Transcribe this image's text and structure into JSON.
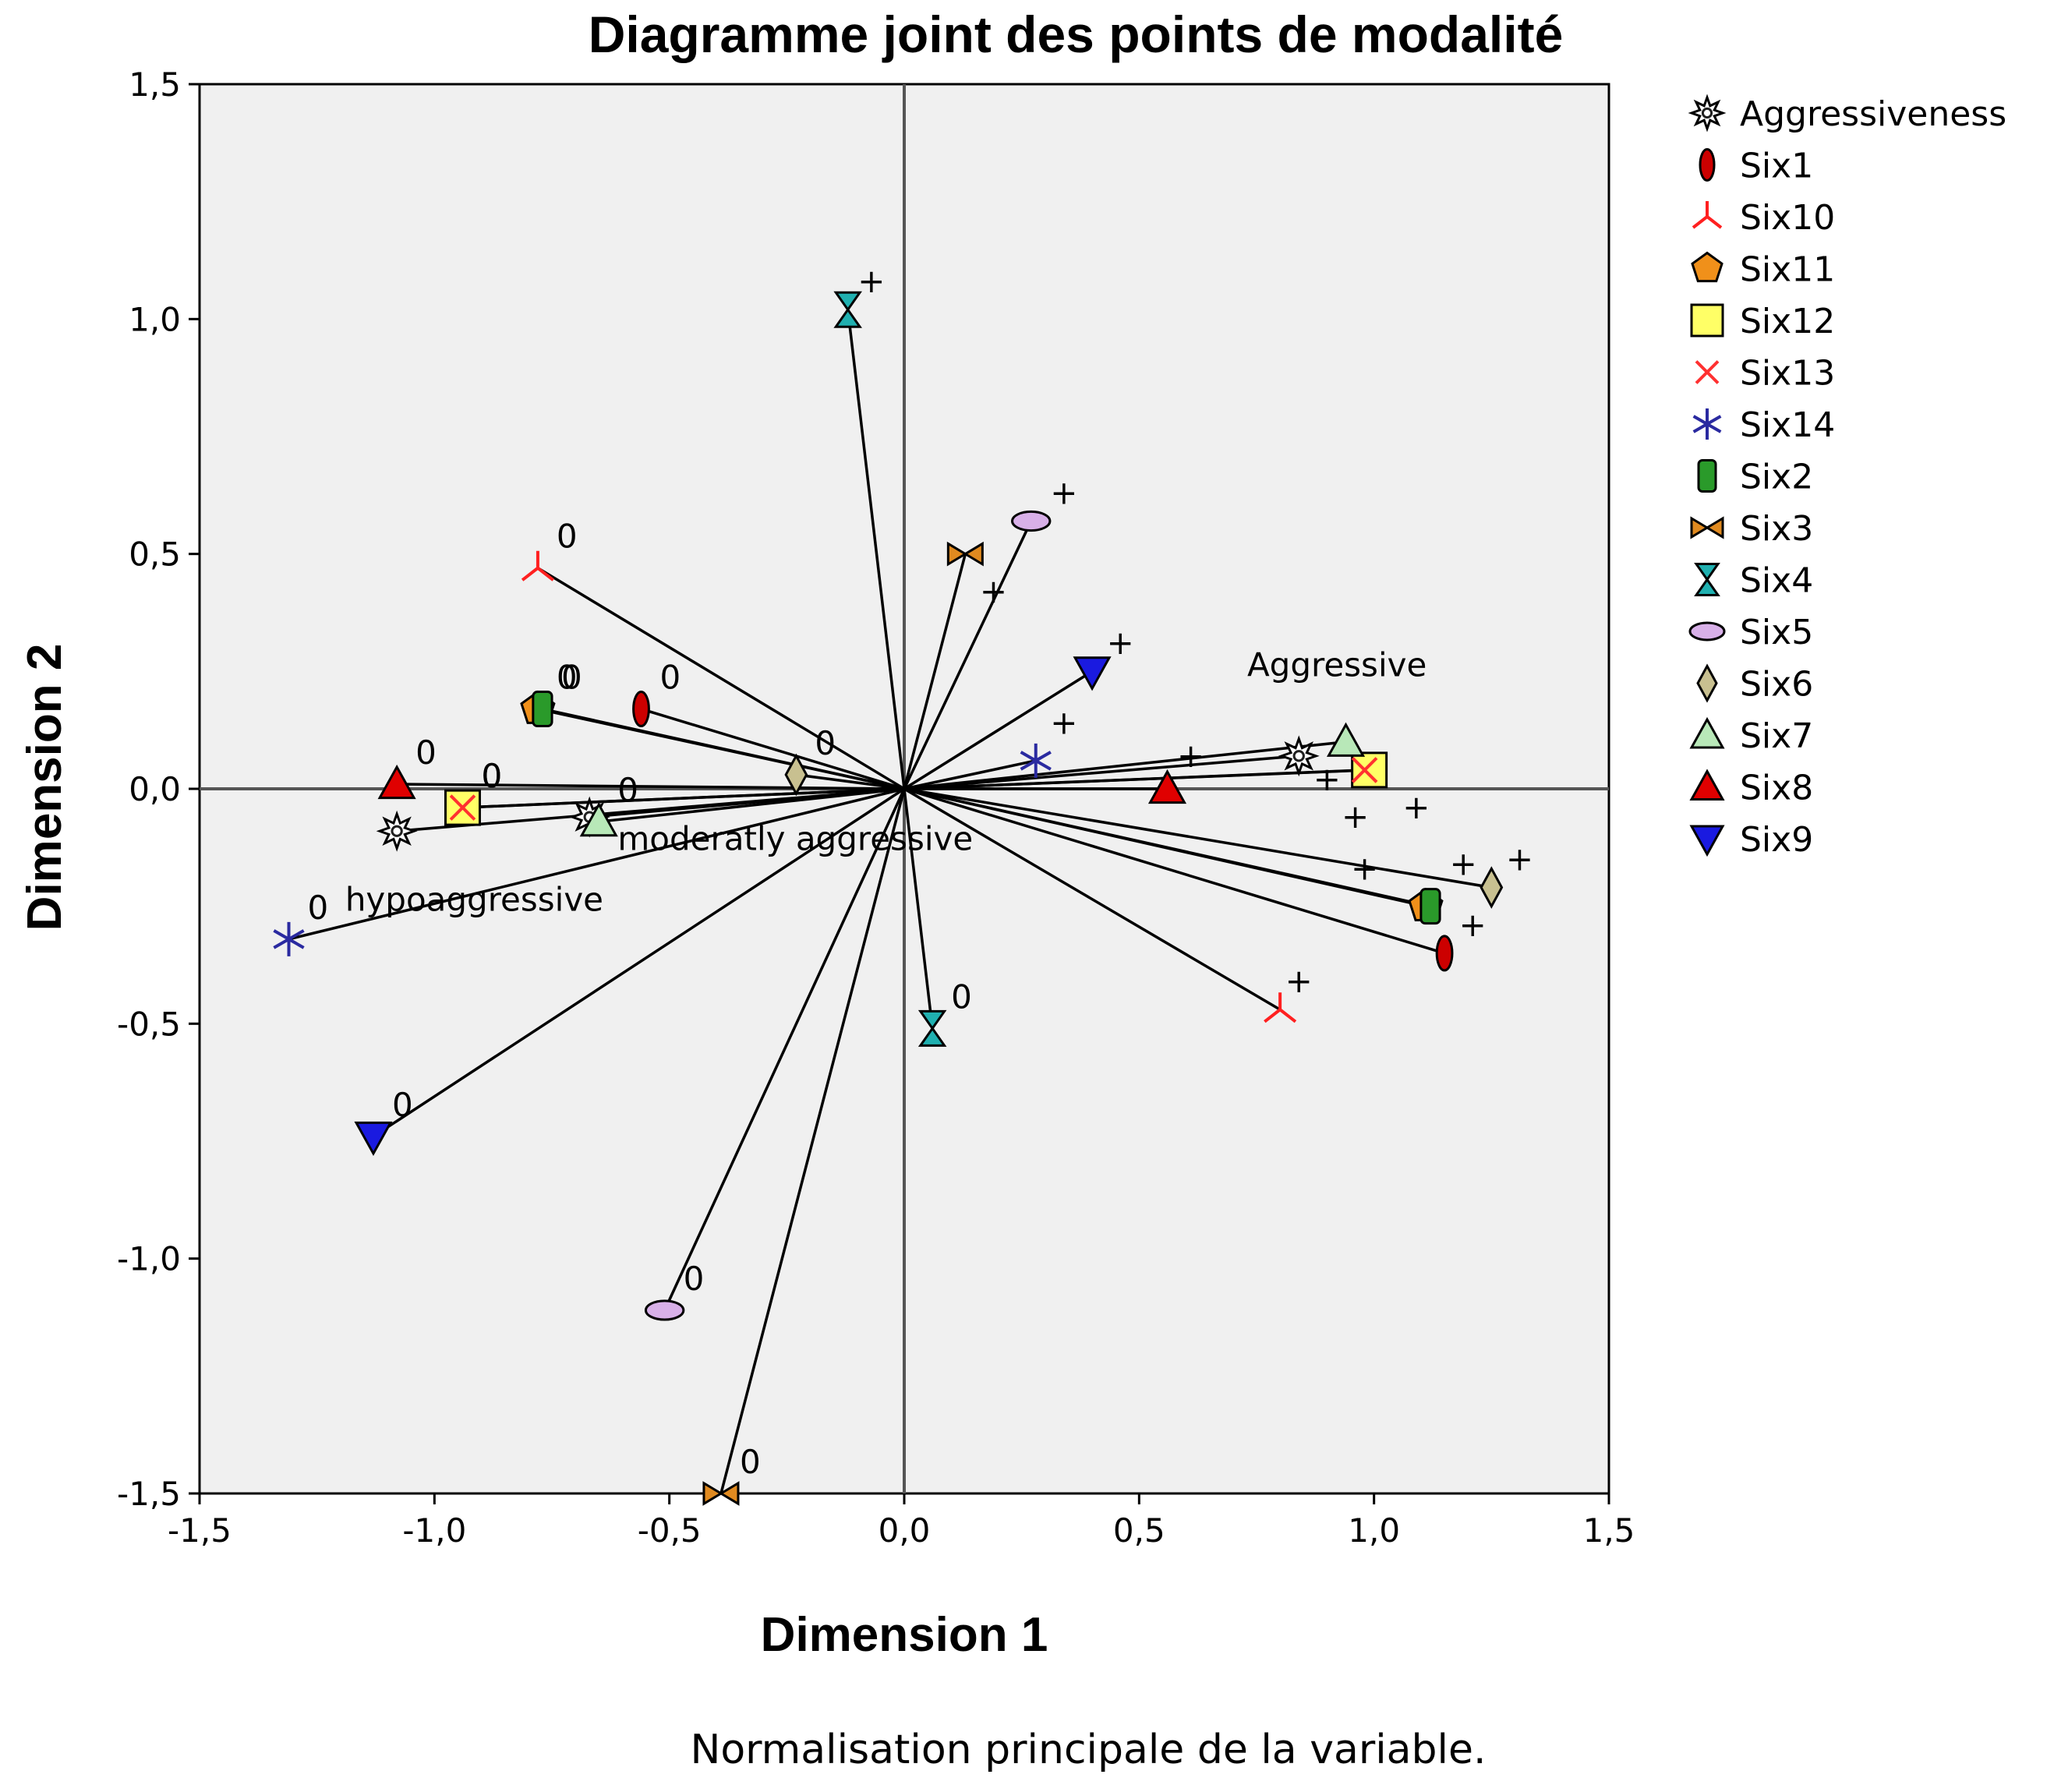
{
  "chart_data": {
    "type": "scatter",
    "title": "Diagramme joint des points de modalité",
    "xlabel": "Dimension 1",
    "ylabel": "Dimension 2",
    "xlim": [
      -1.5,
      1.5
    ],
    "ylim": [
      -1.5,
      1.5
    ],
    "xticks": [
      "-1,5",
      "-1,0",
      "-0,5",
      "0,0",
      "0,5",
      "1,0",
      "1,5"
    ],
    "yticks": [
      "1,5",
      "1,0",
      "0,5",
      "0,0",
      "-0,5",
      "-1,0",
      "-1,5"
    ],
    "footnote": "Normalisation principale de la variable.",
    "legend_position": "right",
    "series": [
      {
        "name": "Aggressiveness",
        "marker": "star",
        "color": "#202020",
        "points": [
          [
            0.84,
            0.07
          ],
          [
            -1.08,
            -0.09
          ],
          [
            -0.67,
            -0.06
          ]
        ]
      },
      {
        "name": "Six1",
        "marker": "ellipse-v",
        "color": "#cc0000",
        "points": [
          [
            -0.56,
            0.17,
            "0"
          ],
          [
            1.15,
            -0.35,
            ""
          ]
        ],
        "plus": [
          [
            1.21,
            -0.29
          ]
        ]
      },
      {
        "name": "Six10",
        "marker": "tripod",
        "color": "#ff2020",
        "points": [
          [
            -0.78,
            0.47,
            "0"
          ],
          [
            0.8,
            -0.47,
            ""
          ]
        ],
        "plus": [
          [
            0.84,
            -0.41
          ]
        ]
      },
      {
        "name": "Six11",
        "marker": "pentagon",
        "color": "#f0901a",
        "points": [
          [
            -0.78,
            0.17,
            "0"
          ],
          [
            1.11,
            -0.25,
            ""
          ]
        ],
        "plus": [
          [
            1.19,
            -0.16
          ]
        ]
      },
      {
        "name": "Six12",
        "marker": "square",
        "color": "#ffff66",
        "points": [
          [
            -0.94,
            -0.04,
            "0"
          ],
          [
            0.99,
            0.04,
            ""
          ]
        ],
        "plus": [
          [
            0.96,
            -0.06
          ]
        ]
      },
      {
        "name": "Six13",
        "marker": "x",
        "color": "#ff3030",
        "points": [
          [
            -0.94,
            -0.04,
            "0"
          ],
          [
            0.98,
            0.04,
            ""
          ]
        ],
        "plus": [
          [
            1.09,
            -0.04
          ]
        ]
      },
      {
        "name": "Six14",
        "marker": "star6",
        "color": "#2a2aa0",
        "points": [
          [
            -1.31,
            -0.32,
            "0"
          ],
          [
            0.28,
            0.06,
            ""
          ]
        ],
        "plus": [
          [
            0.34,
            0.14
          ]
        ]
      },
      {
        "name": "Six2",
        "marker": "barrel",
        "color": "#2a9a2a",
        "points": [
          [
            -0.77,
            0.17,
            "0"
          ],
          [
            1.12,
            -0.25,
            ""
          ]
        ],
        "plus": [
          [
            0.98,
            -0.17
          ]
        ]
      },
      {
        "name": "Six3",
        "marker": "bowtie",
        "color": "#e08a20",
        "points": [
          [
            -0.39,
            -1.5,
            "0"
          ],
          [
            0.13,
            0.5,
            ""
          ]
        ],
        "plus": [
          [
            0.19,
            0.42
          ]
        ]
      },
      {
        "name": "Six4",
        "marker": "hourglass",
        "color": "#20b0b0",
        "points": [
          [
            0.06,
            -0.51,
            "0"
          ],
          [
            -0.12,
            1.02,
            ""
          ]
        ],
        "plus": [
          [
            -0.07,
            1.08
          ]
        ]
      },
      {
        "name": "Six5",
        "marker": "ellipse-h",
        "color": "#d8b0e8",
        "points": [
          [
            -0.51,
            -1.11,
            "0"
          ],
          [
            0.27,
            0.57,
            ""
          ]
        ],
        "plus": [
          [
            0.34,
            0.63
          ]
        ]
      },
      {
        "name": "Six6",
        "marker": "diamond",
        "color": "#c8c090",
        "points": [
          [
            -0.23,
            0.03,
            "0"
          ],
          [
            1.25,
            -0.21,
            ""
          ]
        ],
        "plus": [
          [
            1.31,
            -0.15
          ]
        ]
      },
      {
        "name": "Six7",
        "marker": "triangle-up",
        "color": "#b8e8b8",
        "points": [
          [
            -0.65,
            -0.07,
            "0"
          ],
          [
            0.94,
            0.1,
            ""
          ]
        ],
        "plus": [
          [
            0.9,
            0.02
          ]
        ]
      },
      {
        "name": "Six8",
        "marker": "triangle-up",
        "color": "#e00000",
        "points": [
          [
            -1.08,
            0.01,
            "0"
          ],
          [
            0.56,
            0.0,
            ""
          ]
        ],
        "plus": [
          [
            0.61,
            0.07
          ]
        ]
      },
      {
        "name": "Six9",
        "marker": "triangle-down",
        "color": "#1a1ae0",
        "points": [
          [
            -1.13,
            -0.74,
            "0"
          ],
          [
            0.4,
            0.25,
            ""
          ]
        ],
        "plus": [
          [
            0.46,
            0.31
          ]
        ]
      }
    ],
    "annotations": [
      {
        "text": "Aggressive",
        "x": 0.73,
        "y": 0.24
      },
      {
        "text": "moderatly aggressive",
        "x": -0.61,
        "y": -0.13
      },
      {
        "text": "hypoaggressive",
        "x": -1.19,
        "y": -0.26
      }
    ]
  }
}
